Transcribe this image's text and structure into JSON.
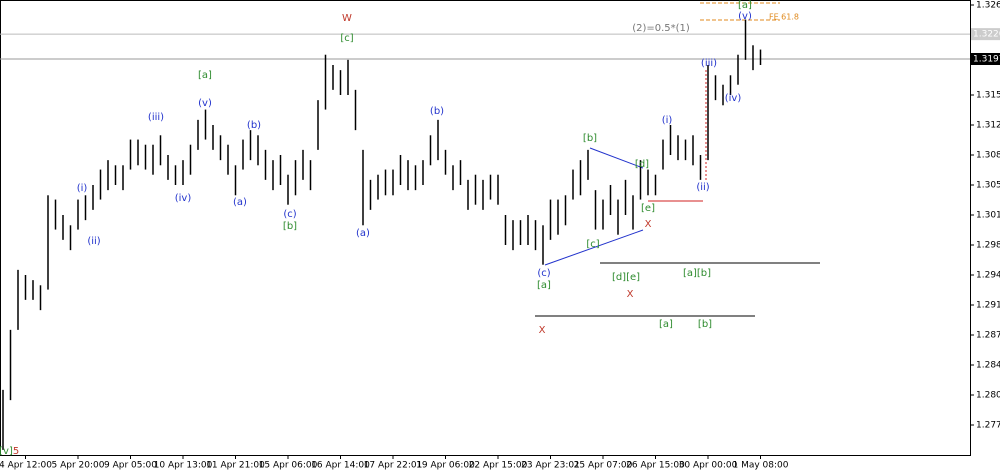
{
  "chart_data": {
    "type": "ohlc",
    "categories": [
      null,
      null,
      null,
      "4 Apr 12:00",
      null,
      null,
      null,
      null,
      null,
      null,
      "5 Apr 20:00",
      null,
      null,
      null,
      null,
      null,
      null,
      "9 Apr 05:00",
      null,
      null,
      null,
      null,
      null,
      null,
      "10 Apr 13:00",
      null,
      null,
      null,
      null,
      null,
      null,
      "11 Apr 21:00",
      null,
      null,
      null,
      null,
      null,
      null,
      "15 Apr 06:00",
      null,
      null,
      null,
      null,
      null,
      null,
      "16 Apr 14:00",
      null,
      null,
      null,
      null,
      null,
      null,
      "17 Apr 22:01",
      null,
      null,
      null,
      null,
      null,
      null,
      "19 Apr 06:00",
      null,
      null,
      null,
      null,
      null,
      null,
      "22 Apr 15:00",
      null,
      null,
      null,
      null,
      null,
      null,
      "23 Apr 23:01",
      null,
      null,
      null,
      null,
      null,
      null,
      "25 Apr 07:00",
      null,
      null,
      null,
      null,
      null,
      null,
      "26 Apr 15:00",
      null,
      null,
      null,
      null,
      null,
      null,
      "30 Apr 00:00",
      null,
      null,
      null,
      null,
      null,
      null,
      "1 May 08:00"
    ],
    "series": [
      {
        "name": "high",
        "color": "#000000",
        "values": [
          1.2811,
          1.2881,
          1.2951,
          1.2945,
          1.2939,
          1.2933,
          1.3038,
          1.3033,
          1.3015,
          1.3003,
          1.3033,
          1.3038,
          1.305,
          1.3068,
          1.3079,
          1.3073,
          1.3073,
          1.3103,
          1.3103,
          1.3097,
          1.3097,
          1.3108,
          1.3085,
          1.3073,
          1.3079,
          1.3097,
          1.3126,
          1.3138,
          1.312,
          1.3108,
          1.3097,
          1.3073,
          1.3103,
          1.3114,
          1.3108,
          1.3091,
          1.3079,
          1.3085,
          1.3062,
          1.3079,
          1.3091,
          1.3079,
          1.3149,
          1.3202,
          1.319,
          1.3184,
          1.3196,
          1.3161,
          1.3091,
          1.3056,
          1.3062,
          1.3068,
          1.3068,
          1.3085,
          1.3079,
          1.3073,
          1.3079,
          1.3108,
          1.3126,
          1.3091,
          1.3073,
          1.3079,
          1.3056,
          1.3062,
          1.3056,
          1.3062,
          1.3062,
          1.3015,
          1.3009,
          1.3009,
          1.3015,
          1.3009,
          1.3003,
          1.3033,
          1.3033,
          1.3038,
          1.3068,
          1.3079,
          1.3091,
          1.3044,
          1.3033,
          1.305,
          1.3033,
          1.3056,
          1.3038,
          1.3079,
          1.3068,
          1.3062,
          1.3103,
          1.312,
          1.3108,
          1.3103,
          1.3108,
          1.3085,
          1.319,
          1.3178,
          1.3167,
          1.3178,
          1.3202,
          1.3243,
          1.3213,
          1.3208
        ]
      },
      {
        "name": "low",
        "color": "#000000",
        "values": [
          1.2741,
          1.2799,
          1.2881,
          1.2916,
          1.2916,
          1.2904,
          1.2928,
          1.2998,
          1.2986,
          1.2974,
          1.2998,
          1.3009,
          1.3021,
          1.3033,
          1.3044,
          1.305,
          1.3044,
          1.3068,
          1.3073,
          1.3068,
          1.3062,
          1.3073,
          1.3056,
          1.305,
          1.305,
          1.3062,
          1.3091,
          1.3103,
          1.3091,
          1.3079,
          1.3062,
          1.3038,
          1.3068,
          1.3079,
          1.3073,
          1.3056,
          1.3044,
          1.305,
          1.3027,
          1.3038,
          1.3056,
          1.3044,
          1.3091,
          1.3138,
          1.3161,
          1.3155,
          1.3155,
          1.3114,
          1.3003,
          1.3021,
          1.3033,
          1.3038,
          1.3038,
          1.305,
          1.3044,
          1.3044,
          1.305,
          1.3073,
          1.3079,
          1.3062,
          1.3044,
          1.305,
          1.3021,
          1.3027,
          1.3021,
          1.3033,
          1.3027,
          1.298,
          1.2974,
          1.298,
          1.298,
          1.2974,
          1.2957,
          1.2986,
          1.2992,
          1.3003,
          1.3033,
          1.3038,
          1.3056,
          1.2998,
          1.2998,
          1.3015,
          1.2992,
          1.3015,
          1.2998,
          1.3033,
          1.3038,
          1.3038,
          1.3068,
          1.3085,
          1.3079,
          1.3079,
          1.3073,
          1.3056,
          1.3079,
          1.3149,
          1.3143,
          1.3155,
          1.3167,
          1.3196,
          1.3184,
          1.319
        ]
      }
    ],
    "ylim": [
      1.2735,
      1.326
    ],
    "yticks": [
      {
        "value": 1.326,
        "label": "1.3260"
      },
      1.3155,
      {
        "value": 1.312,
        "label": "1.3120"
      },
      1.3085,
      {
        "value": 1.305,
        "label": "1.3050"
      },
      1.3015,
      {
        "value": 1.298,
        "label": "1.2980"
      },
      1.2945,
      {
        "value": 1.291,
        "label": "1.2910"
      },
      1.2875,
      {
        "value": 1.284,
        "label": "1.2840"
      },
      1.2805,
      {
        "value": 1.277,
        "label": "1.2770"
      }
    ],
    "price_line": 1.3197,
    "level_line": 1.3226,
    "annotations": [
      {
        "text": "W",
        "color": "#c0392b"
      },
      {
        "text": "[c]",
        "color": "#2e8b2e"
      },
      {
        "text": "[a]",
        "color": "#2e8b2e"
      },
      {
        "text": "(v)",
        "color": "#2233cc"
      },
      {
        "text": "(iii)",
        "color": "#2233cc"
      },
      {
        "text": "(i)",
        "color": "#2233cc"
      },
      {
        "text": "(ii)",
        "color": "#2233cc"
      },
      {
        "text": "(iv)",
        "color": "#2233cc"
      },
      {
        "text": "(a)",
        "color": "#2233cc"
      },
      {
        "text": "(b)",
        "color": "#2233cc"
      },
      {
        "text": "(c)",
        "color": "#2233cc"
      },
      {
        "text": "[b]",
        "color": "#2e8b2e"
      },
      {
        "text": "(a)",
        "color": "#2233cc"
      },
      {
        "text": "(b)",
        "color": "#2233cc"
      },
      {
        "text": "(c)",
        "color": "#2233cc"
      },
      {
        "text": "[a]",
        "color": "#2e8b2e"
      },
      {
        "text": "[b]",
        "color": "#2e8b2e"
      },
      {
        "text": "[c]",
        "color": "#2e8b2e"
      },
      {
        "text": "[d]",
        "color": "#2e8b2e"
      },
      {
        "text": "[e]",
        "color": "#2e8b2e"
      },
      {
        "text": "X",
        "color": "#c0392b"
      },
      {
        "text": "[d][e]",
        "color": "#2e8b2e"
      },
      {
        "text": "X",
        "color": "#c0392b"
      },
      {
        "text": "[a][b]",
        "color": "#2e8b2e"
      },
      {
        "text": "X",
        "color": "#c0392b"
      },
      {
        "text": "[a]",
        "color": "#2e8b2e"
      },
      {
        "text": "[b]",
        "color": "#2e8b2e"
      },
      {
        "text": "(i)",
        "color": "#2233cc"
      },
      {
        "text": "(ii)",
        "color": "#2233cc"
      },
      {
        "text": "(iii)",
        "color": "#2233cc"
      },
      {
        "text": "(iv)",
        "color": "#2233cc"
      },
      {
        "text": "(v)",
        "color": "#2233cc"
      },
      {
        "text": "[a]",
        "color": "#2e8b2e"
      },
      {
        "text": "(2)=0.5*(1)",
        "color": "#777777"
      },
      {
        "text": "FE 61.8",
        "color": "#e08a1e"
      },
      {
        "text": "[v]",
        "color": "#2e8b2e"
      },
      {
        "text": "5",
        "color": "#c0392b"
      }
    ]
  }
}
